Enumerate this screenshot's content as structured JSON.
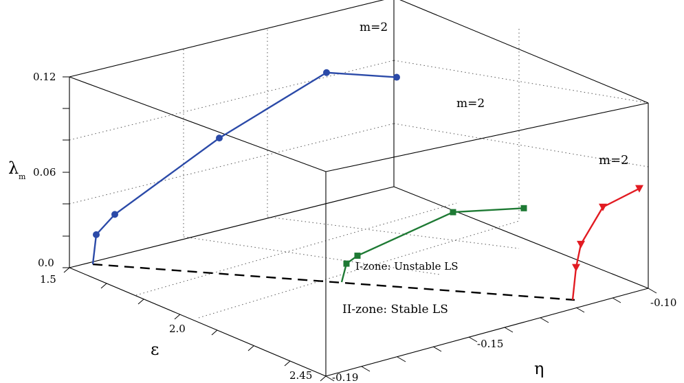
{
  "chart_data": {
    "type": "line",
    "projection": "3d",
    "axes": {
      "lambda": {
        "label": "λ",
        "label_sub": "m",
        "ticks": [
          "0.0",
          "0.06",
          "0.12"
        ],
        "range": [
          0.0,
          0.12
        ]
      },
      "epsilon": {
        "label": "ε",
        "ticks": [
          "1.5",
          "2.0",
          "2.45"
        ],
        "range": [
          1.5,
          2.45
        ]
      },
      "eta": {
        "label": "η",
        "ticks": [
          "-0.19",
          "-0.15",
          "-0.10"
        ],
        "range": [
          -0.19,
          -0.1
        ]
      }
    },
    "grid": true,
    "series": [
      {
        "color": "#2b4aa8",
        "marker": "circle",
        "annotation": "m=2",
        "points": [
          {
            "eta": -0.19,
            "epsilon": 1.58,
            "lambda": 0.0
          },
          {
            "eta": -0.19,
            "epsilon": 1.58,
            "lambda": 0.019
          },
          {
            "eta": -0.19,
            "epsilon": 1.58,
            "lambda": 0.032
          },
          {
            "eta": -0.19,
            "epsilon": 1.58,
            "lambda": 0.081
          },
          {
            "eta": -0.19,
            "epsilon": 1.58,
            "lambda": 0.123
          },
          {
            "eta": -0.19,
            "epsilon": 1.58,
            "lambda": 0.12
          }
        ]
      },
      {
        "color": "#1e7a34",
        "marker": "square",
        "annotation": "m=2",
        "points": [
          {
            "eta": -0.15,
            "epsilon": 1.6,
            "lambda": 0.0
          },
          {
            "eta": -0.15,
            "epsilon": 1.6,
            "lambda": 0.014
          },
          {
            "eta": -0.15,
            "epsilon": 1.6,
            "lambda": 0.02
          },
          {
            "eta": -0.15,
            "epsilon": 1.6,
            "lambda": 0.053
          },
          {
            "eta": -0.15,
            "epsilon": 1.6,
            "lambda": 0.056
          }
        ]
      },
      {
        "color": "#e21b22",
        "marker": "triangle-down",
        "annotation": "m=2",
        "points": [
          {
            "eta": -0.11,
            "epsilon": 1.6,
            "lambda": 0.0
          },
          {
            "eta": -0.11,
            "epsilon": 1.6,
            "lambda": 0.014
          },
          {
            "eta": -0.11,
            "epsilon": 1.6,
            "lambda": 0.024
          },
          {
            "eta": -0.11,
            "epsilon": 1.6,
            "lambda": 0.04
          },
          {
            "eta": -0.11,
            "epsilon": 1.6,
            "lambda": 0.048
          }
        ]
      }
    ],
    "boundary": {
      "style": "dashed",
      "color": "#000000"
    },
    "annotations": {
      "unstable_zone": "I-zone: Unstable LS",
      "stable_zone": "II-zone: Stable LS"
    }
  }
}
